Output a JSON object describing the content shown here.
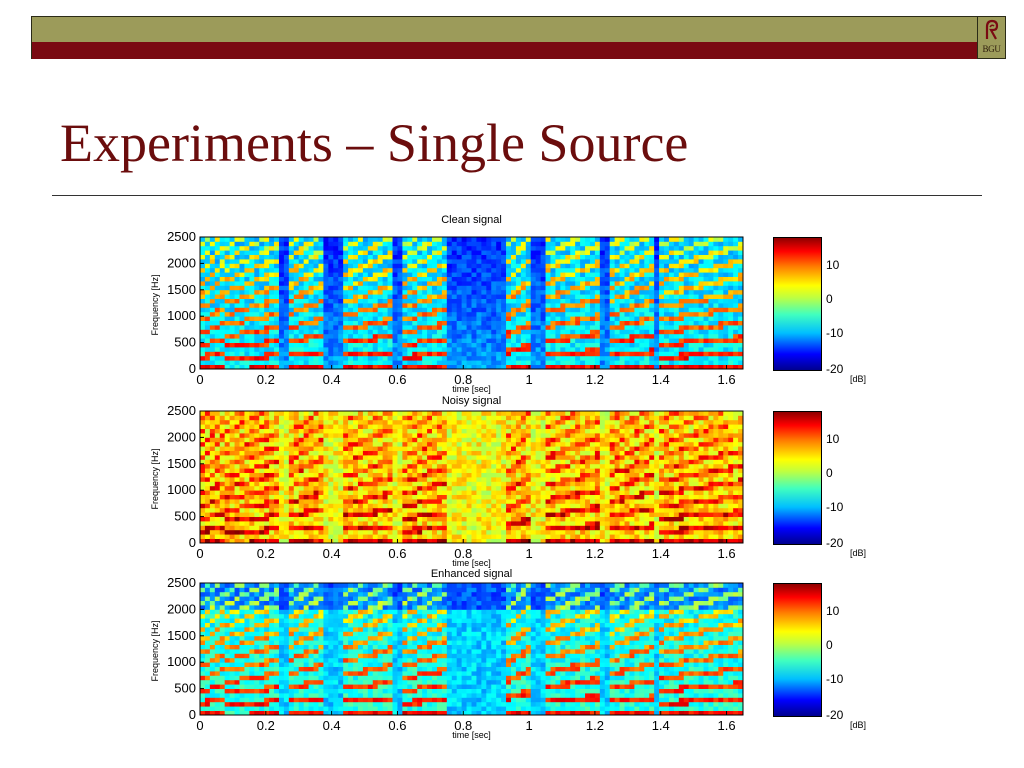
{
  "slide": {
    "title": "Experiments – Single Source",
    "logo_text": "BGU",
    "colors": {
      "olive_bar": "#9c9b5a",
      "red_bar": "#7a0a12",
      "title": "#6b0d0d"
    }
  },
  "chart_data": [
    {
      "type": "heatmap",
      "title": "Clean signal",
      "xlabel": "time [sec]",
      "ylabel": "Frequency [Hz]",
      "xlim": [
        0,
        1.65
      ],
      "ylim": [
        0,
        2500
      ],
      "xticks": [
        "0",
        "0.2",
        "0.4",
        "0.6",
        "0.8",
        "1",
        "1.2",
        "1.4",
        "1.6"
      ],
      "yticks": [
        "0",
        "500",
        "1000",
        "1500",
        "2000",
        "2500"
      ],
      "colorbar": {
        "ticks": [
          "10",
          "0",
          "-10",
          "-20"
        ],
        "unit": "[dB]",
        "range": [
          -20,
          18
        ]
      },
      "colormap": "jet"
    },
    {
      "type": "heatmap",
      "title": "Noisy signal",
      "xlabel": "time [sec]",
      "ylabel": "Frequency [Hz]",
      "xlim": [
        0,
        1.65
      ],
      "ylim": [
        0,
        2500
      ],
      "xticks": [
        "0",
        "0.2",
        "0.4",
        "0.6",
        "0.8",
        "1",
        "1.2",
        "1.4",
        "1.6"
      ],
      "yticks": [
        "0",
        "500",
        "1000",
        "1500",
        "2000",
        "2500"
      ],
      "colorbar": {
        "ticks": [
          "10",
          "0",
          "-10",
          "-20"
        ],
        "unit": "[dB]",
        "range": [
          -20,
          18
        ]
      },
      "colormap": "jet"
    },
    {
      "type": "heatmap",
      "title": "Enhanced signal",
      "xlabel": "time [sec]",
      "ylabel": "Frequency [Hz]",
      "xlim": [
        0,
        1.65
      ],
      "ylim": [
        0,
        2500
      ],
      "xticks": [
        "0",
        "0.2",
        "0.4",
        "0.6",
        "0.8",
        "1",
        "1.2",
        "1.4",
        "1.6"
      ],
      "yticks": [
        "0",
        "500",
        "1000",
        "1500",
        "2000",
        "2500"
      ],
      "colorbar": {
        "ticks": [
          "10",
          "0",
          "-10",
          "-20"
        ],
        "unit": "[dB]",
        "range": [
          -20,
          18
        ]
      },
      "colormap": "jet"
    }
  ]
}
